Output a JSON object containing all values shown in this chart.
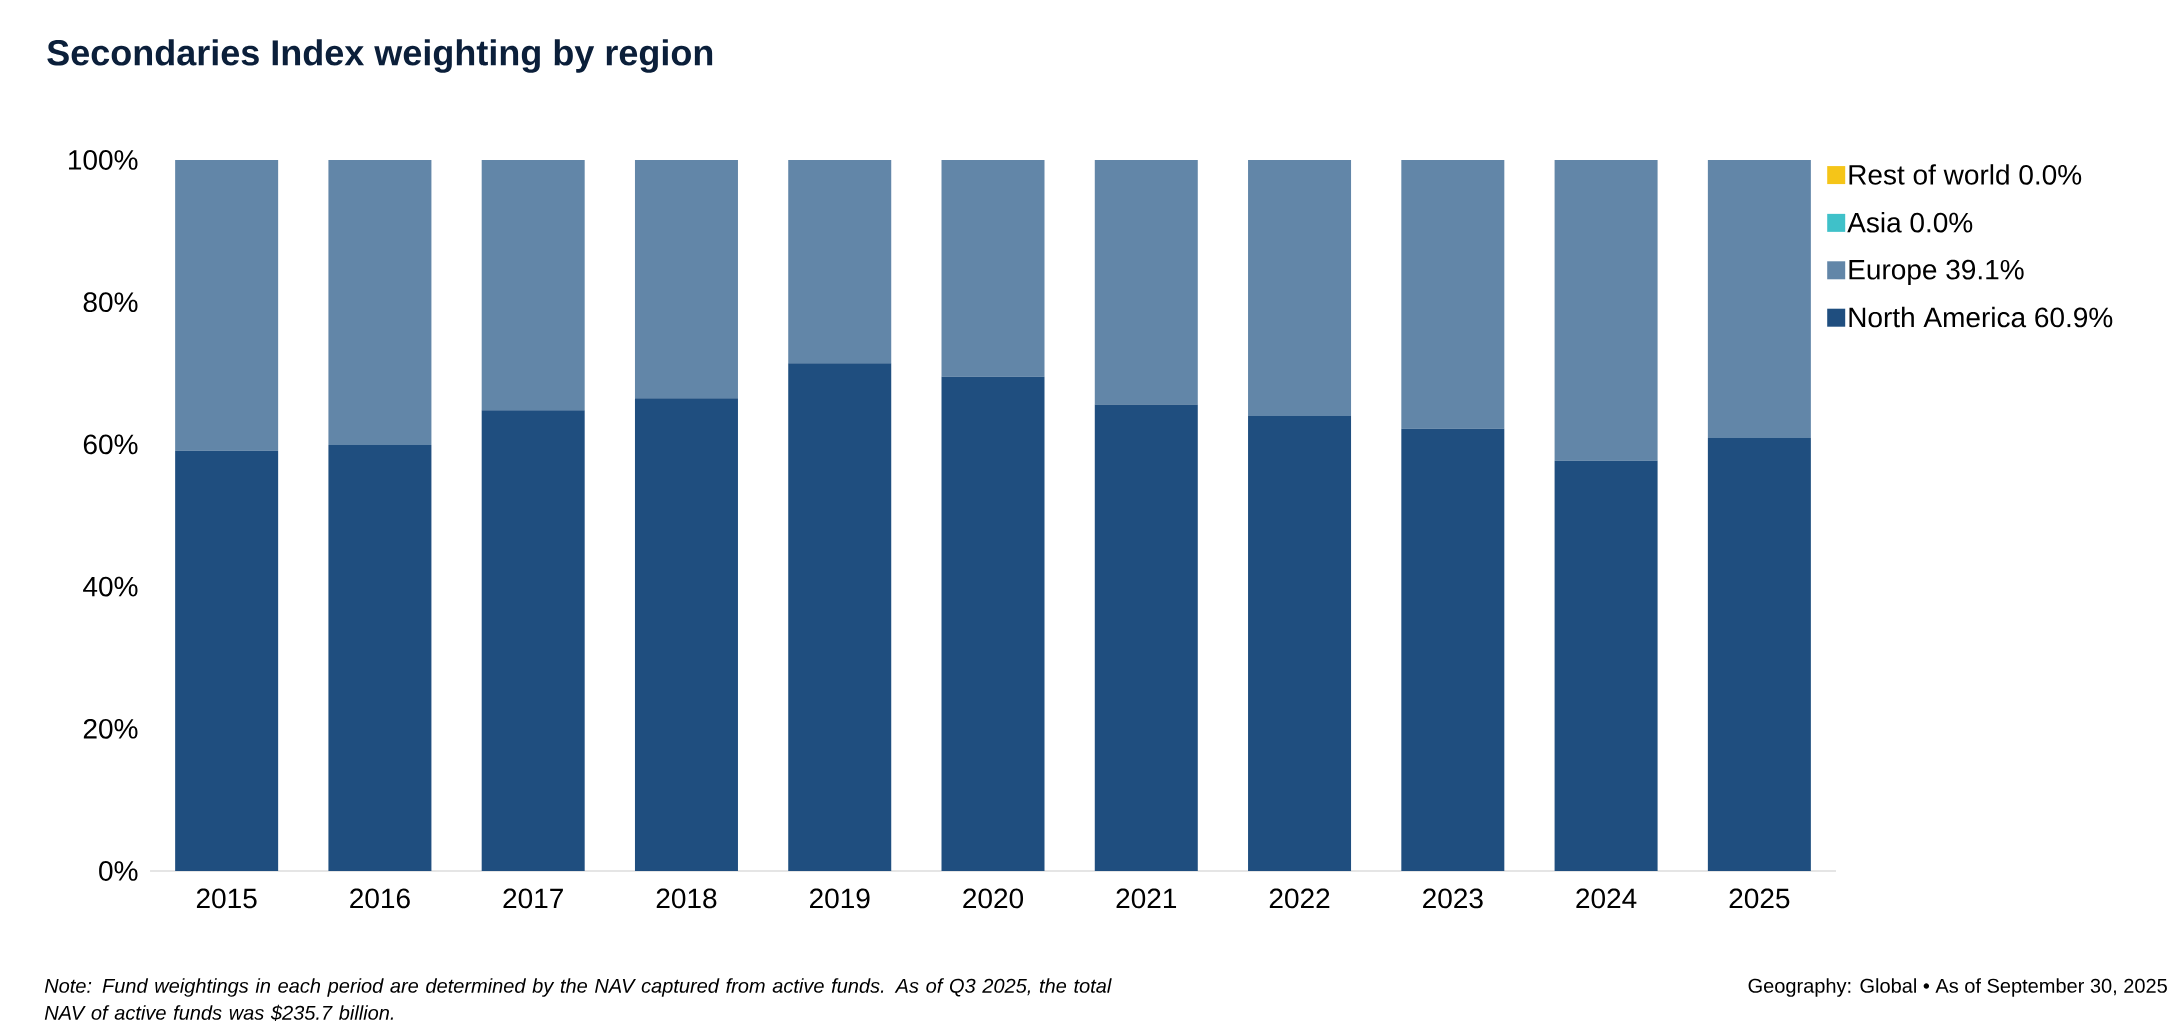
{
  "chart_data": {
    "type": "bar",
    "title": "Secondaries Index weighting by region",
    "categories": [
      "2015",
      "2016",
      "2017",
      "2018",
      "2019",
      "2020",
      "2021",
      "2022",
      "2023",
      "2024",
      "2025"
    ],
    "stacked": true,
    "series": [
      {
        "name": "North America 60.9%",
        "color": "#1f4e7f",
        "values": [
          59.1,
          59.9,
          64.8,
          66.5,
          71.4,
          69.5,
          65.6,
          64.0,
          62.2,
          57.7,
          60.9
        ]
      },
      {
        "name": "Europe 39.1%",
        "color": "#6286a8",
        "values": [
          40.9,
          40.1,
          35.2,
          33.5,
          28.6,
          30.5,
          34.4,
          36.0,
          37.8,
          42.3,
          39.1
        ]
      },
      {
        "name": "Asia 0.0%",
        "color": "#3fc1c9",
        "values": [
          0,
          0,
          0,
          0,
          0,
          0,
          0,
          0,
          0,
          0,
          0
        ]
      },
      {
        "name": "Rest of world 0.0%",
        "color": "#f5c518",
        "values": [
          0,
          0,
          0,
          0,
          0,
          0,
          0,
          0,
          0,
          0,
          0
        ]
      }
    ],
    "ylim": [
      0,
      100
    ],
    "yticks": [
      {
        "value": 0,
        "label": "0%"
      },
      {
        "value": 20,
        "label": "20%"
      },
      {
        "value": 40,
        "label": "40%"
      },
      {
        "value": 60,
        "label": "60%"
      },
      {
        "value": 80,
        "label": "80%"
      },
      {
        "value": 100,
        "label": "100%"
      }
    ],
    "grid": false,
    "legend": "right",
    "annotations": [
      "*Note: Fund weightings in each period are determined by the NAV captured from active funds. As of Q3 2025, the total NAV of active funds was $235.7 billion.*",
      "Geography: Global • As of September 30, 2025"
    ]
  }
}
